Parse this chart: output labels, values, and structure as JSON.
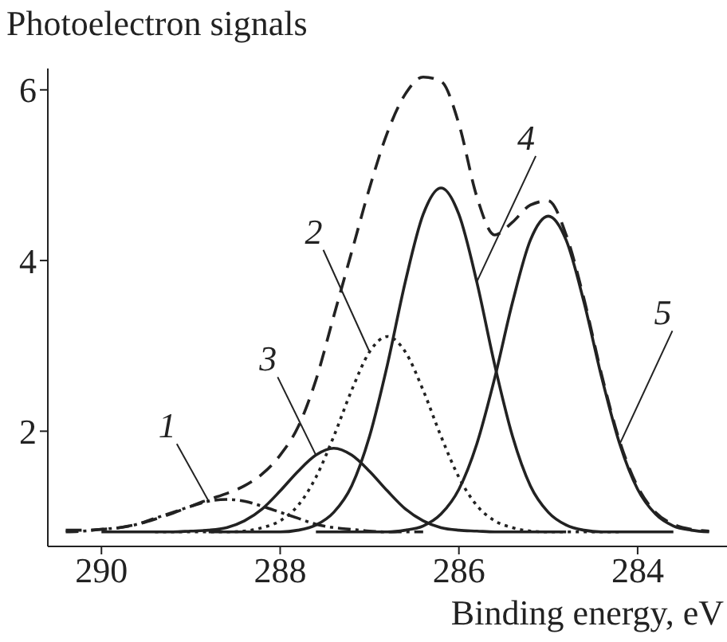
{
  "chart_data": {
    "type": "line",
    "ylabel": "Photoelectron signals",
    "xlabel": "Binding energy, eV",
    "marker": "none",
    "xlim": [
      290.6,
      283
    ],
    "xticks": [
      290,
      288,
      286,
      284
    ],
    "ylim": [
      0.65,
      6.25
    ],
    "yticks": [
      2,
      4,
      6
    ],
    "x": [
      290.4,
      290.2,
      290.0,
      289.8,
      289.6,
      289.4,
      289.2,
      289.0,
      288.8,
      288.6,
      288.4,
      288.2,
      288.0,
      287.8,
      287.6,
      287.4,
      287.2,
      287.0,
      286.8,
      286.6,
      286.4,
      286.2,
      286.0,
      285.8,
      285.6,
      285.4,
      285.2,
      285.0,
      284.8,
      284.6,
      284.4,
      284.2,
      284.0,
      283.8,
      283.6,
      283.4,
      283.2
    ],
    "series": [
      {
        "name": "1",
        "color": "#222222",
        "line_style": "dashdot",
        "values": [
          0.82,
          0.83,
          0.85,
          0.87,
          0.91,
          0.98,
          1.05,
          1.12,
          1.18,
          1.2,
          1.18,
          1.12,
          1.05,
          0.98,
          0.91,
          0.87,
          0.85,
          0.83,
          0.82,
          0.82,
          0.82,
          null,
          null,
          null,
          null,
          null,
          null,
          null,
          null,
          null,
          null,
          null,
          null,
          null,
          null,
          null,
          null
        ]
      },
      {
        "name": "2",
        "color": "#222222",
        "line_style": "dotted",
        "values": [
          null,
          null,
          null,
          null,
          null,
          0.82,
          0.82,
          0.82,
          0.82,
          0.82,
          0.83,
          0.87,
          0.95,
          1.13,
          1.46,
          1.94,
          2.48,
          2.93,
          3.11,
          2.93,
          2.48,
          1.94,
          1.46,
          1.13,
          0.95,
          0.87,
          0.83,
          0.82,
          0.82,
          0.82,
          0.82,
          0.82,
          null,
          null,
          null,
          null,
          null
        ]
      },
      {
        "name": "3",
        "color": "#222222",
        "line_style": "solid",
        "values": [
          null,
          null,
          0.82,
          0.82,
          0.82,
          0.82,
          0.82,
          0.83,
          0.84,
          0.87,
          0.95,
          1.09,
          1.3,
          1.53,
          1.72,
          1.8,
          1.72,
          1.53,
          1.3,
          1.09,
          0.95,
          0.87,
          0.84,
          0.83,
          0.82,
          0.82,
          0.82,
          0.82,
          0.82,
          null,
          null,
          null,
          null,
          null,
          null,
          null,
          null
        ]
      },
      {
        "name": "4",
        "color": "#222222",
        "line_style": "solid",
        "values": [
          null,
          null,
          null,
          null,
          null,
          null,
          null,
          null,
          0.82,
          0.82,
          0.82,
          0.82,
          0.82,
          0.84,
          0.9,
          1.05,
          1.36,
          1.94,
          2.78,
          3.75,
          4.54,
          4.85,
          4.54,
          3.75,
          2.78,
          1.94,
          1.36,
          1.05,
          0.9,
          0.84,
          0.82,
          0.82,
          0.82,
          0.82,
          0.82,
          null,
          null
        ]
      },
      {
        "name": "5",
        "color": "#222222",
        "line_style": "solid",
        "values": [
          null,
          null,
          null,
          null,
          null,
          null,
          null,
          null,
          null,
          null,
          null,
          null,
          null,
          null,
          0.82,
          0.82,
          0.82,
          0.82,
          0.82,
          0.84,
          0.89,
          1.03,
          1.32,
          1.85,
          2.62,
          3.51,
          4.24,
          4.52,
          4.24,
          3.51,
          2.62,
          1.85,
          1.32,
          1.03,
          0.89,
          0.84,
          0.82
        ]
      },
      {
        "color": "#222222",
        "line_style": "dashed",
        "values": [
          0.84,
          0.84,
          0.85,
          0.87,
          0.91,
          0.97,
          1.04,
          1.12,
          1.2,
          1.27,
          1.36,
          1.5,
          1.72,
          2.05,
          2.6,
          3.35,
          4.1,
          4.85,
          5.5,
          5.95,
          6.15,
          6.1,
          5.6,
          4.75,
          4.3,
          4.45,
          4.65,
          4.7,
          4.3,
          3.55,
          2.65,
          1.88,
          1.35,
          1.05,
          0.91,
          0.85,
          0.83
        ]
      }
    ]
  }
}
